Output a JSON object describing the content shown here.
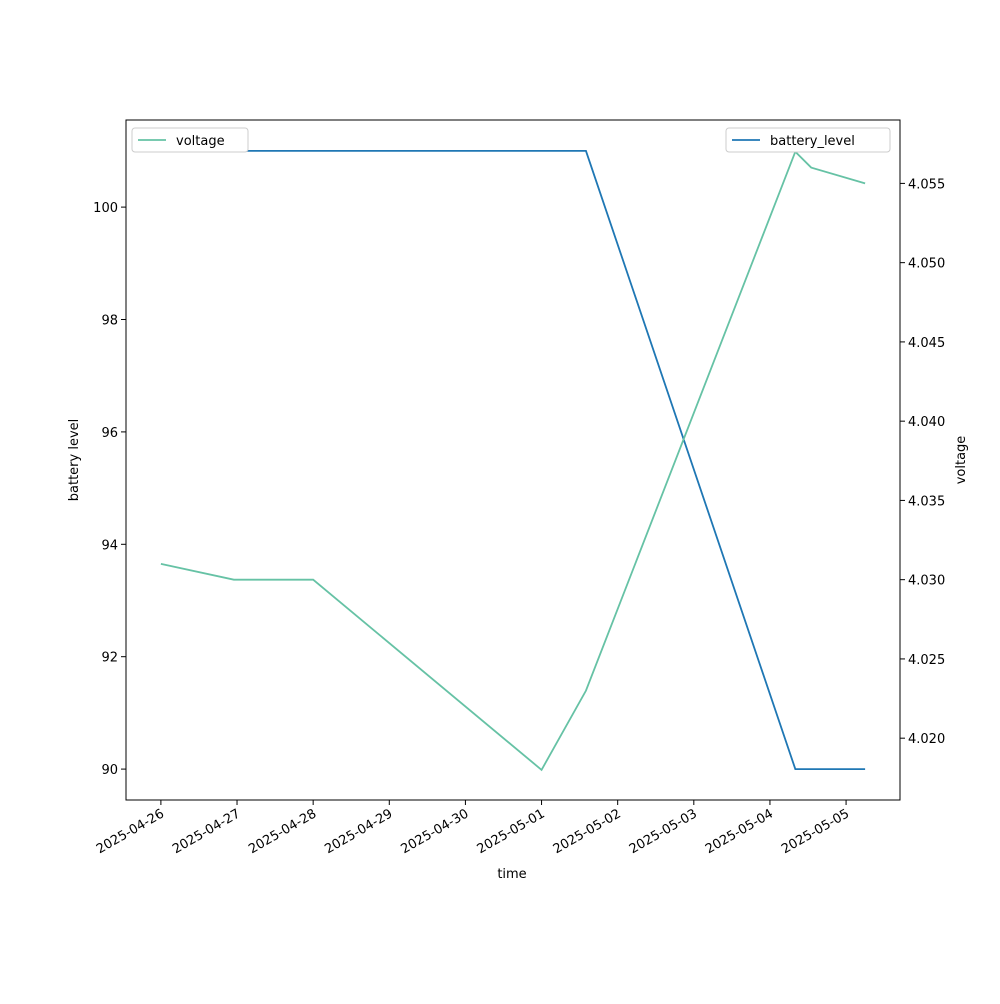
{
  "chart_data": {
    "type": "line",
    "x_label": "time",
    "y_label": "battery level",
    "y2_label": "voltage",
    "x": [
      "2025-04-26T00:00",
      "2025-04-26T23:00",
      "2025-04-28T00:00",
      "2025-05-01T00:00",
      "2025-05-01T14:00",
      "2025-05-04T08:00",
      "2025-05-04T13:00",
      "2025-05-05T06:00"
    ],
    "series": [
      {
        "name": "battery_level",
        "color": "#1f77b4",
        "axis": "y",
        "values": [
          101,
          101,
          101,
          101,
          101,
          90,
          90,
          90
        ],
        "legend": "upper right"
      },
      {
        "name": "voltage",
        "color": "#66c2a5",
        "axis": "y2",
        "values": [
          4.031,
          4.03,
          4.03,
          4.018,
          4.023,
          4.057,
          4.056,
          4.055
        ],
        "legend": "upper left"
      }
    ],
    "xlim": [
      "2025-04-25T13:00",
      "2025-05-05T17:00"
    ],
    "xticks": [
      "2025-04-26",
      "2025-04-27",
      "2025-04-28",
      "2025-04-29",
      "2025-04-30",
      "2025-05-01",
      "2025-05-02",
      "2025-05-03",
      "2025-05-04",
      "2025-05-05"
    ],
    "ylim": [
      89.45,
      101.55
    ],
    "yticks": [
      90,
      92,
      94,
      96,
      98,
      100
    ],
    "y2lim": [
      4.0161,
      4.059
    ],
    "y2ticks": [
      {
        "value": 4.02,
        "label": "4.020"
      },
      4.025,
      {
        "value": 4.03,
        "label": "4.030"
      },
      4.035,
      {
        "value": 4.04,
        "label": "4.040"
      },
      4.045,
      {
        "value": 4.05,
        "label": "4.050"
      },
      4.055
    ],
    "grid": false
  }
}
